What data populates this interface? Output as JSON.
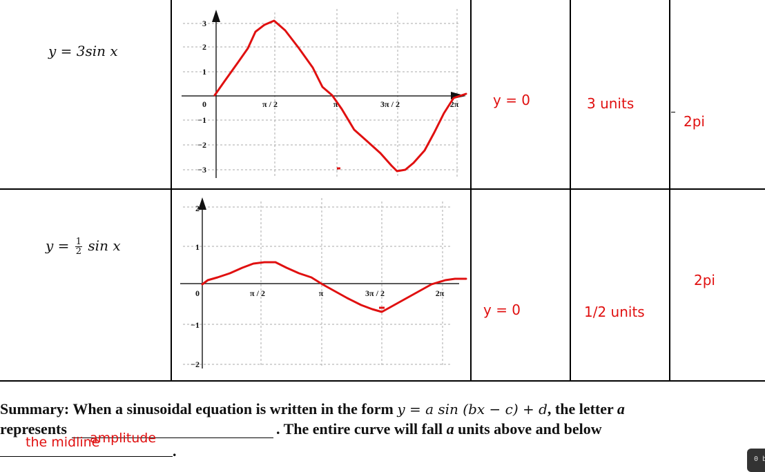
{
  "rows": [
    {
      "equation": "y = 3sin x",
      "midline": "y =  0",
      "amplitude": "3 units",
      "period": "2pi",
      "graph": {
        "y_ticks": [
          "3",
          "2",
          "1",
          "0",
          "−1",
          "−2",
          "−3"
        ],
        "x_ticks": [
          "π / 2",
          "π",
          "3π / 2",
          "2π"
        ]
      }
    },
    {
      "equation_prefix": "y = ",
      "equation_frac_num": "1",
      "equation_frac_den": "2",
      "equation_suffix": "sin x",
      "midline": "y = 0",
      "amplitude": "1/2 units",
      "period": "2pi",
      "graph": {
        "y_ticks": [
          "2",
          "1",
          "0",
          "−1",
          "−2"
        ],
        "x_ticks": [
          "π / 2",
          "π",
          "3π / 2",
          "2π"
        ]
      }
    }
  ],
  "summary": {
    "line1_start": "Summary: When a sinusoidal equation is written in the form ",
    "formula": "y = a sin (bx − c) + d",
    "line1_end": ", the letter ",
    "letter_a": "a",
    "line2_start": "represents",
    "line2_end": ". The entire curve will fall ",
    "line2_tail": " units above and below",
    "period_mark": "."
  },
  "handwriting": {
    "answer1": "amplitude",
    "answer2": "the midline"
  },
  "corner_chip": "0 b"
}
